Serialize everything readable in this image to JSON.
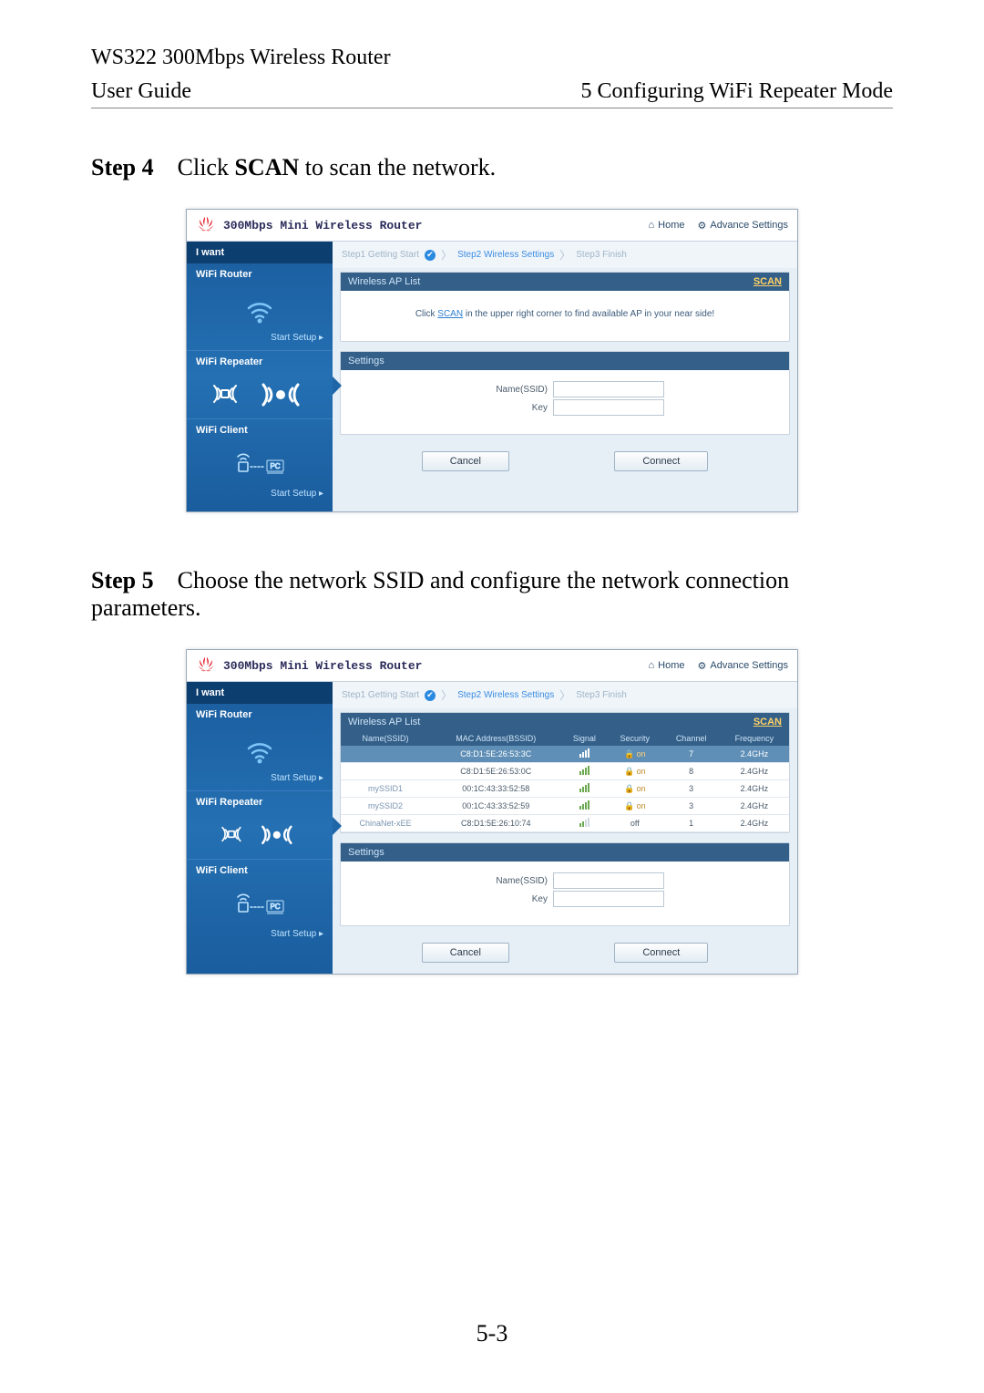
{
  "doc": {
    "title_line1": "WS322 300Mbps Wireless Router",
    "user_guide": "User Guide",
    "chapter": "5 Configuring WiFi Repeater Mode",
    "page_num": "5-3"
  },
  "steps": {
    "s4_label": "Step 4",
    "s4_pre": "Click ",
    "s4_bold": "SCAN",
    "s4_post": " to scan the network.",
    "s5_label": "Step 5",
    "s5_text": "Choose the network SSID and configure the network connection parameters."
  },
  "router": {
    "title": "300Mbps Mini Wireless Router",
    "home": "Home",
    "advance": "Advance Settings",
    "iwant": "I want",
    "wifi_router": "WiFi Router",
    "wifi_repeater": "WiFi Repeater",
    "wifi_client": "WiFi Client",
    "start_setup": "Start Setup ▸",
    "steps_bar": {
      "s1": "Step1 Getting Start",
      "s2": "Step2 Wireless Settings",
      "s3": "Step3 Finish"
    },
    "panel": {
      "ap_list": "Wireless AP List",
      "scan": "SCAN",
      "settings": "Settings",
      "hint_pre": "Click ",
      "hint_link": "SCAN",
      "hint_post": " in the upper right corner to find available AP in your near side!",
      "name_ssid": "Name(SSID)",
      "key": "Key"
    },
    "buttons": {
      "cancel": "Cancel",
      "connect": "Connect"
    },
    "table": {
      "headers": {
        "name": "Name(SSID)",
        "mac": "MAC Address(BSSID)",
        "signal": "Signal",
        "security": "Security",
        "channel": "Channel",
        "frequency": "Frequency"
      },
      "rows": [
        {
          "name": "",
          "mac": "C8:D1:5E:26:53:3C",
          "security_on": true,
          "channel": "7",
          "freq": "2.4GHz",
          "selected": true,
          "sig": 4
        },
        {
          "name": "",
          "mac": "C8:D1:5E:26:53:0C",
          "security_on": true,
          "channel": "8",
          "freq": "2.4GHz",
          "selected": false,
          "sig": 4
        },
        {
          "name": "mySSID1",
          "mac": "00:1C:43:33:52:58",
          "security_on": true,
          "channel": "3",
          "freq": "2.4GHz",
          "selected": false,
          "sig": 4
        },
        {
          "name": "mySSID2",
          "mac": "00:1C:43:33:52:59",
          "security_on": true,
          "channel": "3",
          "freq": "2.4GHz",
          "selected": false,
          "sig": 4
        },
        {
          "name": "ChinaNet-xEE",
          "mac": "C8:D1:5E:26:10:74",
          "security_on": false,
          "channel": "1",
          "freq": "2.4GHz",
          "selected": false,
          "sig": 2
        }
      ]
    }
  },
  "colors": {
    "sidebar_bg": "#1f66a8",
    "panel_head": "#335f88",
    "scan_link": "#ffd166"
  }
}
